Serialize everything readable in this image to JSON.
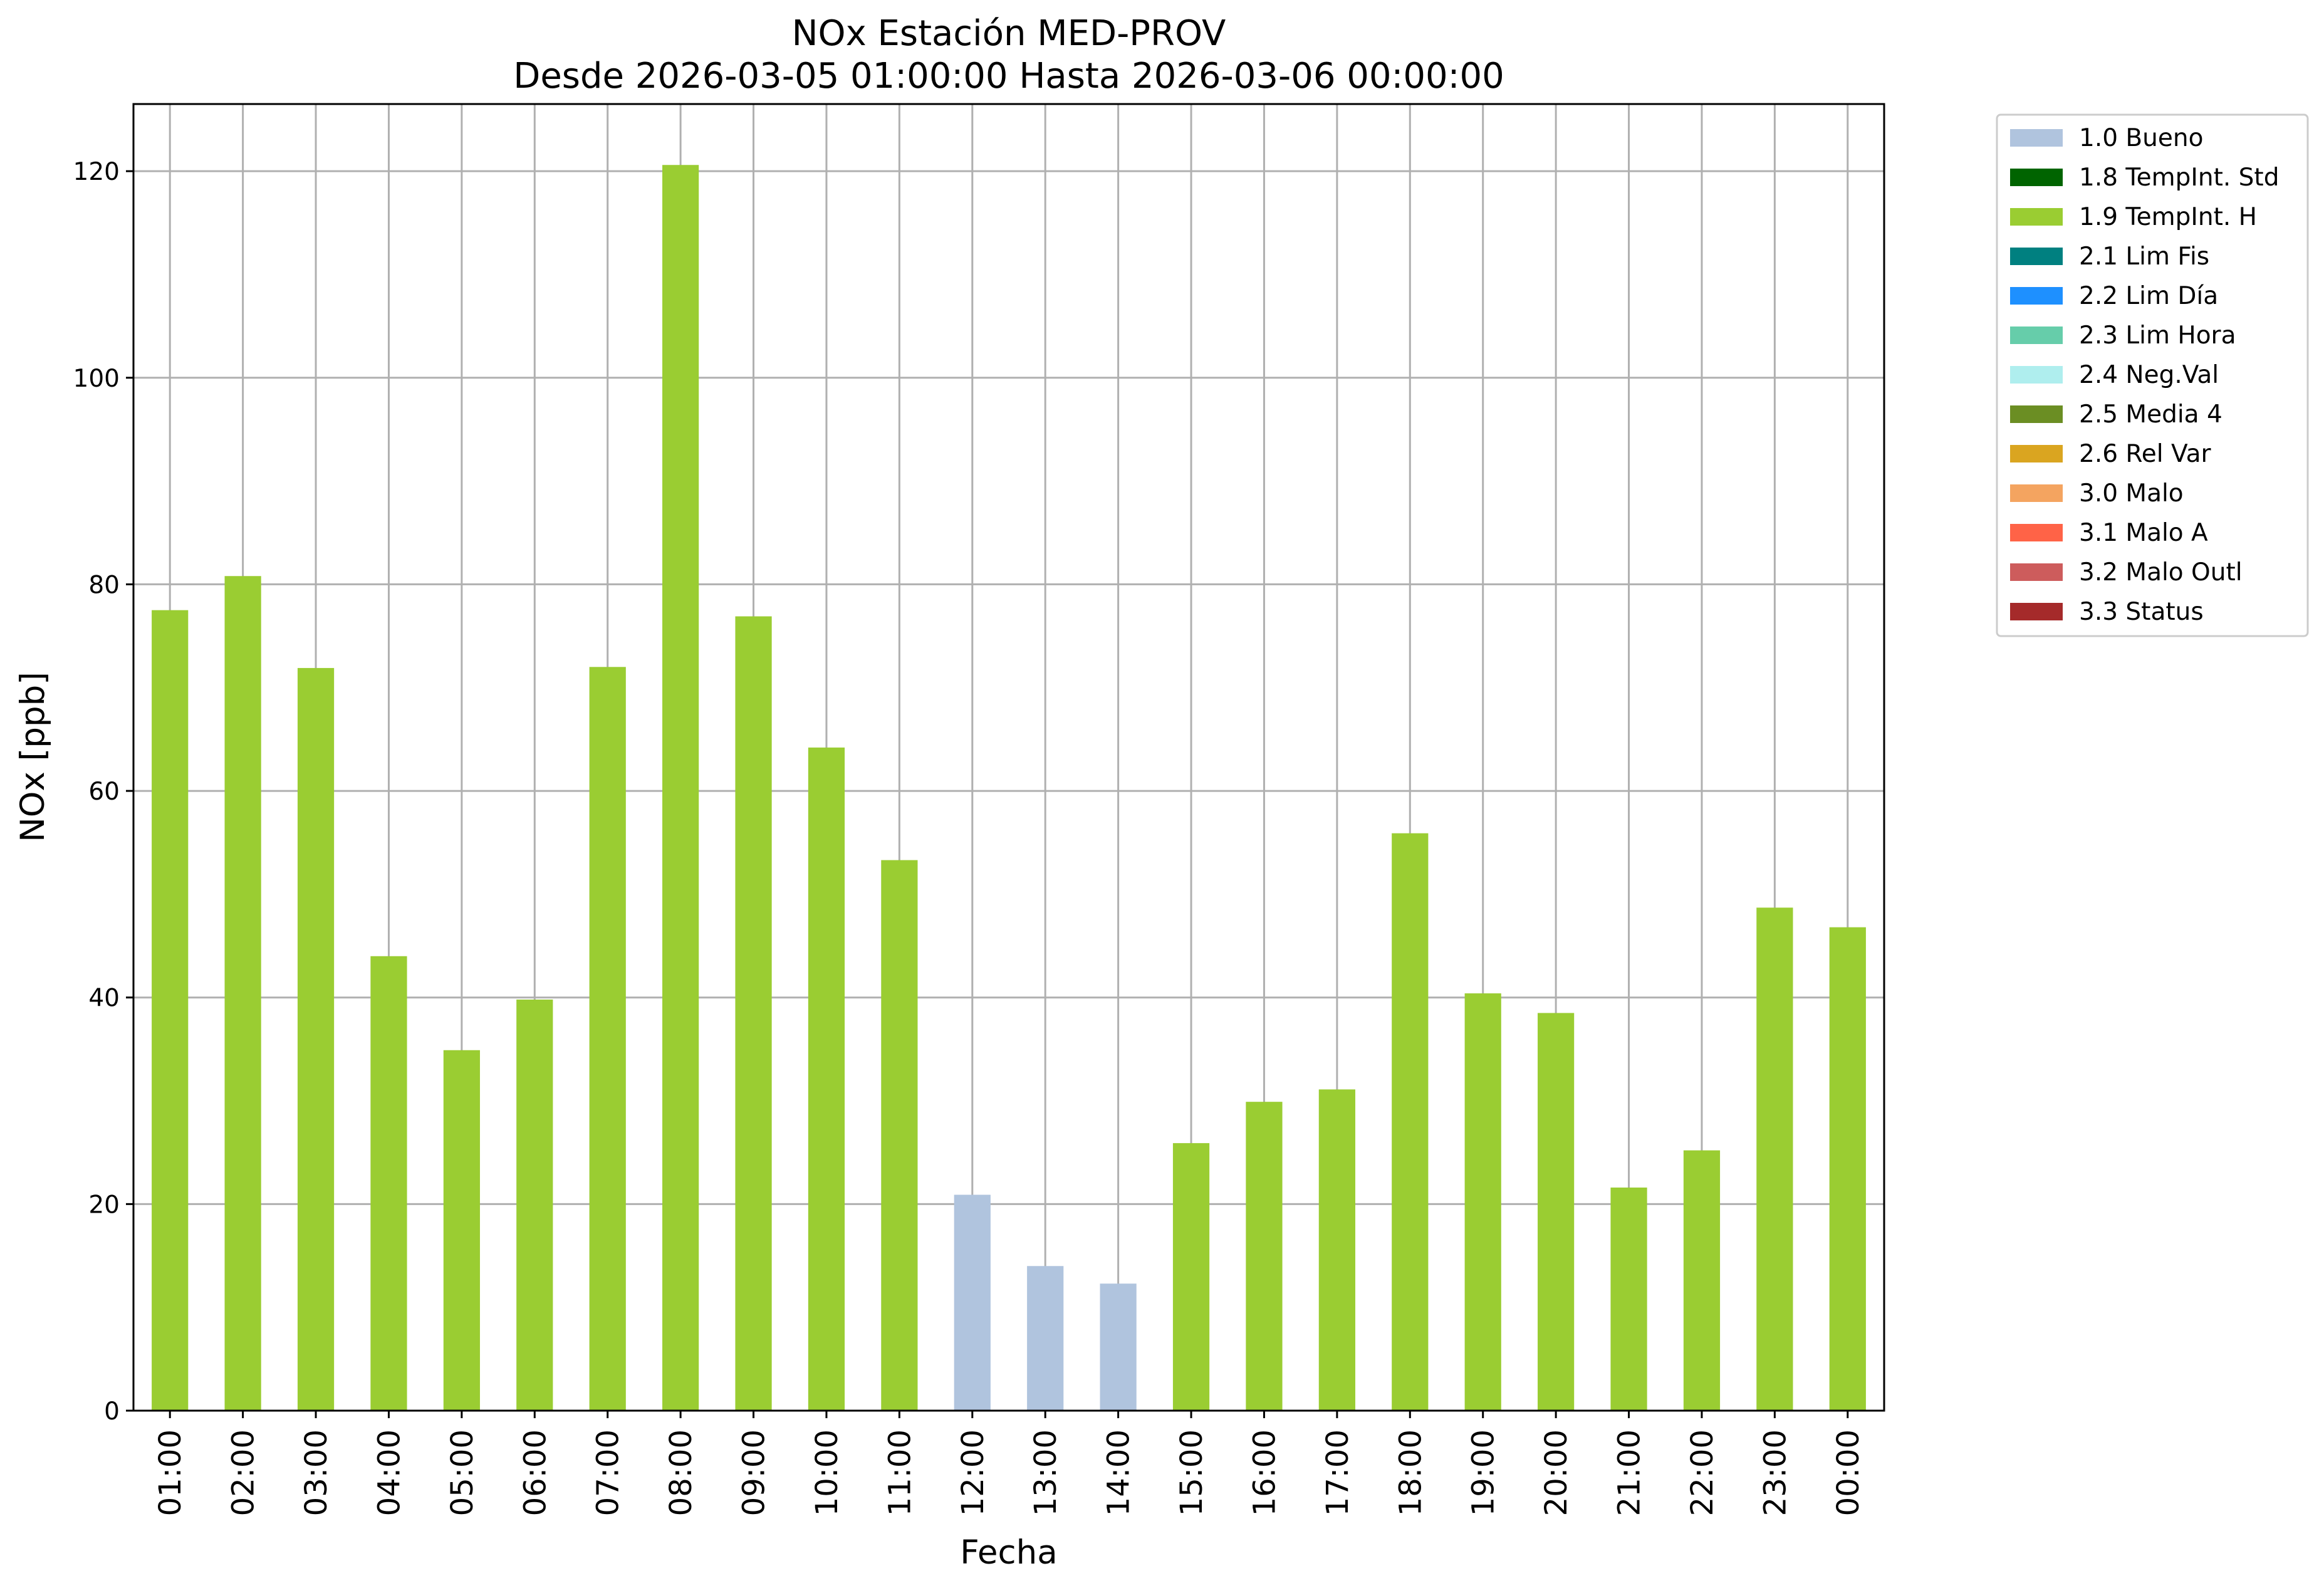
{
  "chart_data": {
    "type": "bar",
    "title": "NOx Estación MED-PROV",
    "subtitle": "Desde 2026-03-05 01:00:00 Hasta 2026-03-06 00:00:00",
    "xlabel": "Fecha",
    "ylabel": "NOx [ppb]",
    "ylim": [
      0,
      126.5
    ],
    "yticks": [
      0,
      20,
      40,
      60,
      80,
      100,
      120
    ],
    "grid": true,
    "legend_position": "outside-top-right",
    "categories": [
      "01:00",
      "02:00",
      "03:00",
      "04:00",
      "05:00",
      "06:00",
      "07:00",
      "08:00",
      "09:00",
      "10:00",
      "11:00",
      "12:00",
      "13:00",
      "14:00",
      "15:00",
      "16:00",
      "17:00",
      "18:00",
      "19:00",
      "20:00",
      "21:00",
      "22:00",
      "23:00",
      "00:00"
    ],
    "values": [
      77.5,
      80.8,
      71.9,
      44.0,
      34.9,
      39.8,
      72.0,
      120.6,
      76.9,
      64.2,
      53.3,
      20.9,
      14.0,
      12.3,
      25.9,
      29.9,
      31.1,
      55.9,
      40.4,
      38.5,
      21.6,
      25.2,
      48.7,
      46.8
    ],
    "flags": [
      "1.9",
      "1.9",
      "1.9",
      "1.9",
      "1.9",
      "1.9",
      "1.9",
      "1.9",
      "1.9",
      "1.9",
      "1.9",
      "1.0",
      "1.0",
      "1.0",
      "1.9",
      "1.9",
      "1.9",
      "1.9",
      "1.9",
      "1.9",
      "1.9",
      "1.9",
      "1.9",
      "1.9"
    ],
    "legend": [
      {
        "code": "1.0",
        "label": "1.0 Bueno",
        "color": "#b0c4de"
      },
      {
        "code": "1.8",
        "label": "1.8 TempInt. Std",
        "color": "#006400"
      },
      {
        "code": "1.9",
        "label": "1.9 TempInt. H",
        "color": "#9acd32"
      },
      {
        "code": "2.1",
        "label": "2.1 Lim Fis",
        "color": "#008080"
      },
      {
        "code": "2.2",
        "label": "2.2 Lim Día",
        "color": "#1e90ff"
      },
      {
        "code": "2.3",
        "label": "2.3 Lim Hora",
        "color": "#66cdaa"
      },
      {
        "code": "2.4",
        "label": "2.4 Neg.Val",
        "color": "#afeeee"
      },
      {
        "code": "2.5",
        "label": "2.5 Media 4",
        "color": "#6b8e23"
      },
      {
        "code": "2.6",
        "label": "2.6 Rel Var",
        "color": "#daa520"
      },
      {
        "code": "3.0",
        "label": "3.0 Malo",
        "color": "#f4a460"
      },
      {
        "code": "3.1",
        "label": "3.1 Malo A",
        "color": "#ff6347"
      },
      {
        "code": "3.2",
        "label": "3.2 Malo Outl",
        "color": "#cd5c5c"
      },
      {
        "code": "3.3",
        "label": "3.3 Status",
        "color": "#a52a2a"
      }
    ]
  }
}
